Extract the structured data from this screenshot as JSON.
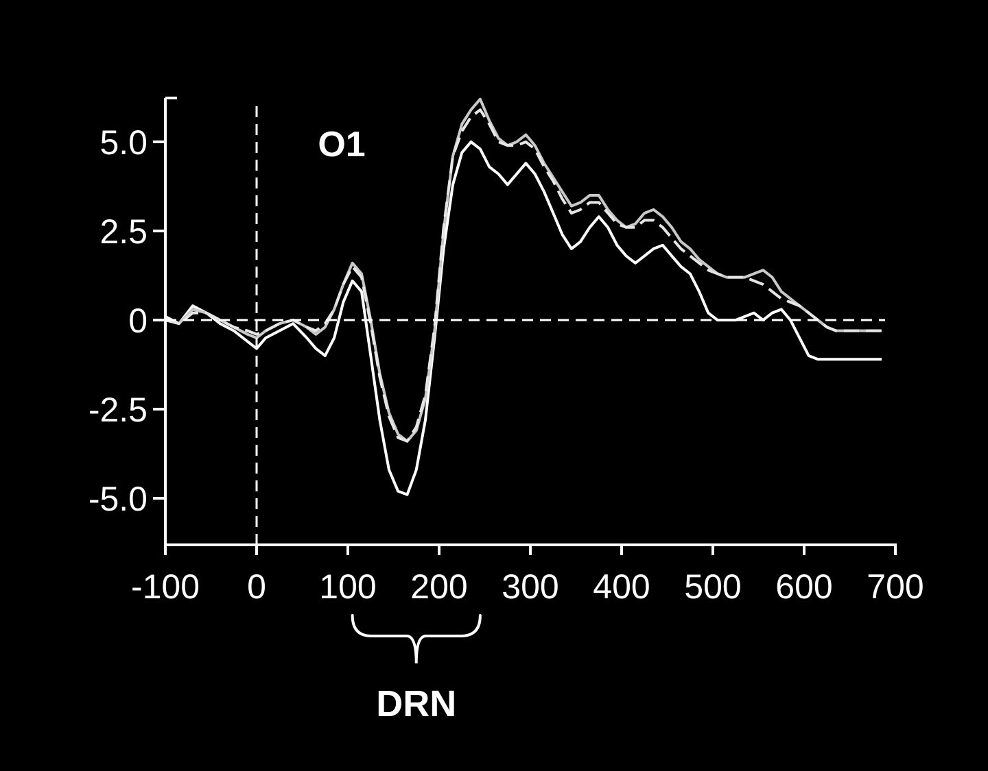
{
  "chart_data": {
    "type": "line",
    "title": "",
    "panel_label": "O1",
    "xlabel": "",
    "ylabel": "",
    "xlim": [
      -100,
      700
    ],
    "ylim": [
      -6.2,
      6.3
    ],
    "x_ticks": [
      -100,
      0,
      100,
      200,
      300,
      400,
      500,
      600,
      700
    ],
    "x_tick_labels": [
      "-100",
      "0",
      "100",
      "200",
      "300",
      "400",
      "500",
      "600",
      "700"
    ],
    "y_ticks": [
      5.0,
      2.5,
      0,
      -2.5,
      -5.0
    ],
    "y_tick_labels": [
      "5.0",
      "2.5",
      "0",
      "-2.5",
      "-5.0"
    ],
    "zero_line": "dashed",
    "onset_line_x": 0,
    "grid": false,
    "legend": "none",
    "annotation": {
      "label": "DRN",
      "x_range": [
        105,
        245
      ]
    },
    "line_colors": [
      "#ffffff",
      "#c8c8c8",
      "#e6e6e6"
    ],
    "series": [
      {
        "style": "solid-white",
        "x": [
          -100,
          -85,
          -70,
          -55,
          -40,
          -25,
          -10,
          0,
          10,
          25,
          40,
          55,
          65,
          75,
          85,
          95,
          105,
          115,
          125,
          135,
          145,
          155,
          165,
          175,
          185,
          195,
          205,
          215,
          225,
          235,
          245,
          255,
          265,
          275,
          285,
          295,
          305,
          315,
          325,
          335,
          345,
          355,
          365,
          375,
          385,
          395,
          405,
          415,
          425,
          435,
          445,
          455,
          465,
          475,
          485,
          495,
          505,
          515,
          525,
          535,
          545,
          555,
          565,
          575,
          585,
          595,
          605,
          615,
          625,
          635,
          645,
          655,
          665,
          675,
          685
        ],
        "values": [
          0.1,
          -0.1,
          0.4,
          0.2,
          -0.1,
          -0.3,
          -0.6,
          -0.8,
          -0.5,
          -0.3,
          -0.1,
          -0.5,
          -0.8,
          -1.0,
          -0.5,
          0.5,
          1.1,
          0.8,
          -1.0,
          -2.8,
          -4.2,
          -4.8,
          -4.9,
          -4.2,
          -2.8,
          -0.5,
          2.0,
          3.8,
          4.7,
          5.0,
          4.8,
          4.3,
          4.1,
          3.8,
          4.1,
          4.4,
          4.1,
          3.6,
          3.0,
          2.4,
          2.0,
          2.2,
          2.6,
          2.9,
          2.6,
          2.1,
          1.8,
          1.6,
          1.8,
          2.0,
          2.1,
          1.8,
          1.5,
          1.3,
          0.8,
          0.2,
          0.0,
          0.0,
          0.0,
          0.1,
          0.2,
          0.0,
          0.2,
          0.3,
          0.0,
          -0.5,
          -1.0,
          -1.1,
          -1.1,
          -1.1,
          -1.1,
          -1.1,
          -1.1,
          -1.1,
          -1.1
        ]
      },
      {
        "style": "solid-gray",
        "x": [
          -100,
          -85,
          -70,
          -55,
          -40,
          -25,
          -10,
          0,
          10,
          25,
          40,
          55,
          65,
          75,
          85,
          95,
          105,
          115,
          125,
          135,
          145,
          155,
          165,
          175,
          185,
          195,
          205,
          215,
          225,
          235,
          245,
          255,
          265,
          275,
          285,
          295,
          305,
          315,
          325,
          335,
          345,
          355,
          365,
          375,
          385,
          395,
          405,
          415,
          425,
          435,
          445,
          455,
          465,
          475,
          485,
          495,
          505,
          515,
          525,
          535,
          545,
          555,
          565,
          575,
          585,
          595,
          605,
          615,
          625,
          635,
          645,
          655,
          665,
          675,
          685
        ],
        "values": [
          0.0,
          -0.1,
          0.3,
          0.2,
          0.0,
          -0.2,
          -0.4,
          -0.5,
          -0.3,
          -0.1,
          0.0,
          -0.2,
          -0.4,
          -0.2,
          0.3,
          1.0,
          1.6,
          1.3,
          0.0,
          -1.5,
          -2.6,
          -3.2,
          -3.4,
          -3.1,
          -2.2,
          -0.3,
          2.5,
          4.6,
          5.5,
          5.9,
          6.2,
          5.6,
          5.1,
          4.9,
          5.0,
          5.2,
          4.9,
          4.4,
          4.0,
          3.6,
          3.2,
          3.3,
          3.5,
          3.5,
          3.1,
          2.8,
          2.6,
          2.7,
          3.0,
          3.1,
          2.9,
          2.6,
          2.2,
          2.0,
          1.7,
          1.5,
          1.3,
          1.2,
          1.2,
          1.2,
          1.3,
          1.4,
          1.2,
          0.8,
          0.6,
          0.4,
          0.2,
          0.0,
          -0.2,
          -0.3,
          -0.3,
          -0.3,
          -0.3,
          -0.3,
          -0.3
        ]
      },
      {
        "style": "dashed",
        "x": [
          -100,
          -85,
          -70,
          -55,
          -40,
          -25,
          -10,
          0,
          10,
          25,
          40,
          55,
          65,
          75,
          85,
          95,
          105,
          115,
          125,
          135,
          145,
          155,
          165,
          175,
          185,
          195,
          205,
          215,
          225,
          235,
          245,
          255,
          265,
          275,
          285,
          295,
          305,
          315,
          325,
          335,
          345,
          355,
          365,
          375,
          385,
          395,
          405,
          415,
          425,
          435,
          445,
          455,
          465,
          475,
          485,
          495,
          505,
          515,
          525,
          535,
          545,
          555,
          565,
          575,
          585,
          595,
          605,
          615,
          625,
          635,
          645,
          655,
          665,
          675,
          685
        ],
        "values": [
          0.0,
          -0.1,
          0.2,
          0.2,
          0.0,
          -0.2,
          -0.3,
          -0.4,
          -0.3,
          -0.1,
          0.0,
          -0.2,
          -0.3,
          -0.1,
          0.3,
          1.0,
          1.5,
          1.2,
          -0.1,
          -1.6,
          -2.7,
          -3.3,
          -3.4,
          -3.0,
          -2.1,
          -0.2,
          2.6,
          4.6,
          5.3,
          5.7,
          5.9,
          5.5,
          5.0,
          4.9,
          4.9,
          5.0,
          4.8,
          4.3,
          3.9,
          3.4,
          3.0,
          3.1,
          3.3,
          3.3,
          3.0,
          2.7,
          2.6,
          2.6,
          2.8,
          2.8,
          2.6,
          2.3,
          2.0,
          1.8,
          1.6,
          1.4,
          1.3,
          1.2,
          1.2,
          1.2,
          1.1,
          1.0,
          0.8,
          0.6,
          0.5,
          0.4,
          0.2,
          0.0,
          -0.2,
          -0.3,
          -0.3,
          -0.3,
          -0.3,
          -0.3,
          -0.3
        ]
      }
    ]
  }
}
